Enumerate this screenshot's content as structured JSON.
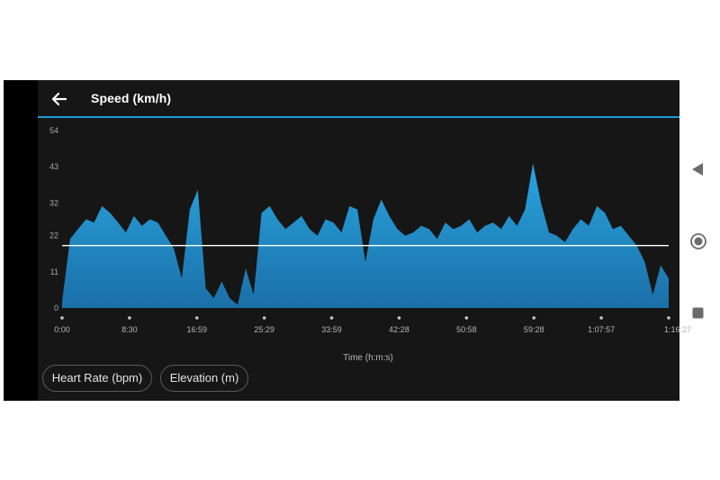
{
  "header": {
    "title": "Speed (km/h)",
    "back_icon": "arrow-left-icon"
  },
  "colors": {
    "accent": "#1e9bd7",
    "area_top": "#29a5de",
    "area_bottom": "#1b6fa8",
    "avg_line": "#ffffff",
    "background": "#161616"
  },
  "chart_data": {
    "type": "area",
    "title": "Speed (km/h)",
    "xlabel": "Time (h:m:s)",
    "ylabel": "",
    "ylim": [
      0,
      54
    ],
    "yticks": [
      0,
      11,
      22,
      32,
      43,
      54
    ],
    "xticks": [
      "0:00",
      "8:30",
      "16:59",
      "25:29",
      "33:59",
      "42:28",
      "50:58",
      "59:28",
      "1:07:57",
      "1:16:27"
    ],
    "x_unit": "minutes",
    "x": [
      0,
      1,
      2,
      3,
      4,
      5,
      6,
      7,
      8,
      9,
      10,
      11,
      12,
      13,
      14,
      15,
      16,
      17,
      18,
      19,
      20,
      21,
      22,
      23,
      24,
      25,
      26,
      27,
      28,
      29,
      30,
      31,
      32,
      33,
      34,
      35,
      36,
      37,
      38,
      39,
      40,
      41,
      42,
      43,
      44,
      45,
      46,
      47,
      48,
      49,
      50,
      51,
      52,
      53,
      54,
      55,
      56,
      57,
      58,
      59,
      60,
      61,
      62,
      63,
      64,
      65,
      66,
      67,
      68,
      69,
      70,
      71,
      72,
      73,
      74,
      75,
      76
    ],
    "series": [
      {
        "values": [
          2,
          21,
          24,
          27,
          26,
          31,
          29,
          26,
          23,
          28,
          25,
          27,
          26,
          22,
          18,
          9,
          30,
          36,
          6,
          3,
          8,
          3,
          1,
          12,
          4,
          29,
          31,
          27,
          24,
          26,
          28,
          24,
          22,
          27,
          26,
          23,
          31,
          30,
          14,
          27,
          33,
          28,
          24,
          22,
          23,
          25,
          24,
          21,
          26,
          24,
          25,
          27,
          23,
          25,
          26,
          24,
          28,
          25,
          30,
          44,
          32,
          23,
          22,
          20,
          24,
          27,
          25,
          31,
          29,
          24,
          25,
          22,
          19,
          14,
          4,
          13,
          9
        ]
      }
    ],
    "average": 19,
    "grid": false
  },
  "buttons": [
    {
      "label": "Heart Rate (bpm)"
    },
    {
      "label": "Elevation (m)"
    }
  ],
  "system_nav": {
    "back_icon": "triangle-back-icon",
    "home_icon": "circle-home-icon",
    "recents_icon": "square-recents-icon"
  }
}
